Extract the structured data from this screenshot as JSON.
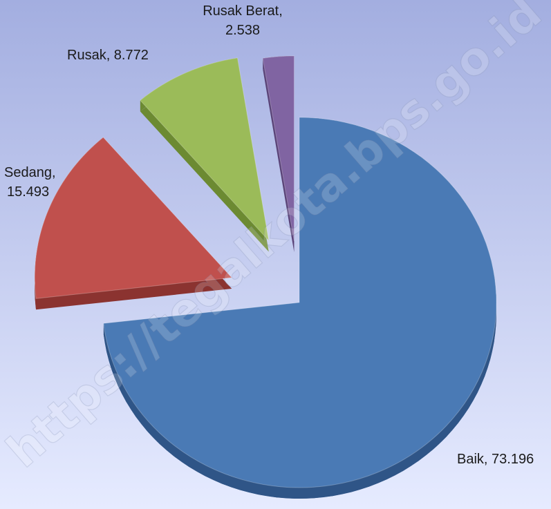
{
  "chart_data": {
    "type": "pie",
    "style": "3d-exploded",
    "title": "",
    "decimal_separator": ".",
    "slices": [
      {
        "name": "Baik",
        "value": 73.196,
        "label_line1": "Baik, 73.196",
        "label_line2": "",
        "color": "#4a7ab5",
        "side_color": "#2f5587"
      },
      {
        "name": "Sedang",
        "value": 15.493,
        "label_line1": "Sedang,",
        "label_line2": "15.493",
        "color": "#c0504d",
        "side_color": "#8b3330"
      },
      {
        "name": "Rusak",
        "value": 8.772,
        "label_line1": "Rusak, 8.772",
        "label_line2": "",
        "color": "#9bbb59",
        "side_color": "#6c8a32"
      },
      {
        "name": "Rusak Berat",
        "value": 2.538,
        "label_line1": "Rusak Berat,",
        "label_line2": "2.538",
        "color": "#8064a2",
        "side_color": "#5a4378"
      }
    ]
  },
  "background": {
    "top_color": "#a3aee0",
    "bottom_color": "#e6ebff"
  },
  "watermark": {
    "text": "https://tegalkota.bps.go.id"
  }
}
